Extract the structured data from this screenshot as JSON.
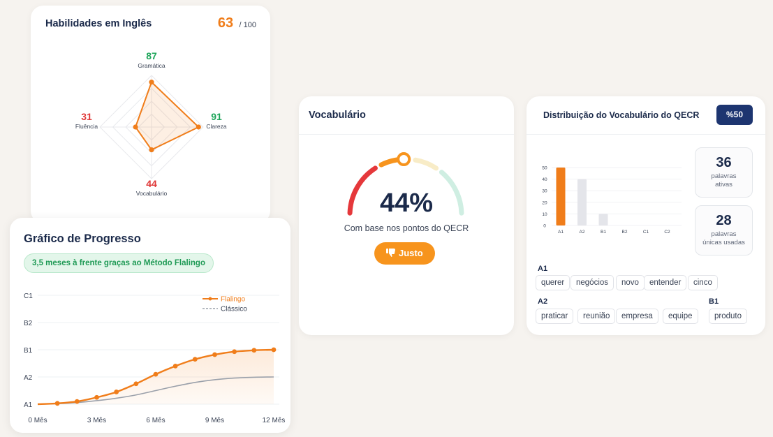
{
  "skills": {
    "title": "Habilidades em Inglês",
    "score": "63",
    "score_max": "/ 100",
    "axes": [
      {
        "label": "Gramática",
        "value": 87,
        "score_text": "87",
        "color": "#1ea55a"
      },
      {
        "label": "Clareza",
        "value": 91,
        "score_text": "91",
        "color": "#1ea55a"
      },
      {
        "label": "Vocabulário",
        "value": 44,
        "score_text": "44",
        "color": "#e03a3a"
      },
      {
        "label": "Fluência",
        "value": 31,
        "score_text": "31",
        "color": "#e03a3a"
      }
    ]
  },
  "progress": {
    "title": "Gráfico de Progresso",
    "badge": "3,5 meses à frente graças ao Método Flalingo",
    "legend": {
      "flalingo": "Flalingo",
      "classic": "Clássico"
    },
    "y_labels": [
      "C1",
      "B2",
      "B1",
      "A2",
      "A1"
    ],
    "x_labels": [
      "0 Mês",
      "3 Mês",
      "6 Mês",
      "9 Mês",
      "12 Mês"
    ]
  },
  "vocab": {
    "title": "Vocabulário",
    "percent": "44%",
    "subtitle": "Com base nos pontos do QECR",
    "button": "Justo",
    "gauge_value": 44
  },
  "dist": {
    "title": "Distribuição do Vocabulário do QECR",
    "badge": "%50",
    "stats": [
      {
        "num": "36",
        "label_line1": "palavras",
        "label_line2": "ativas"
      },
      {
        "num": "28",
        "label_line1": "palavras",
        "label_line2": "únicas usadas"
      }
    ],
    "level_a1": "A1",
    "level_a2": "A2",
    "level_b1": "B1",
    "words_a1": [
      "querer",
      "negócios",
      "novo",
      "entender",
      "cinco"
    ],
    "words_a2": [
      "praticar",
      "reunião",
      "empresa",
      "equipe"
    ],
    "words_b1": [
      "produto"
    ]
  },
  "chart_data": [
    {
      "type": "line",
      "title": "Gráfico de Progresso",
      "x": [
        0,
        1,
        2,
        3,
        4,
        5,
        6,
        7,
        8,
        9,
        10,
        11,
        12
      ],
      "x_tick_labels": [
        "0 Mês",
        "3 Mês",
        "6 Mês",
        "9 Mês",
        "12 Mês"
      ],
      "y_tick_labels": [
        "A1",
        "A2",
        "B1",
        "B2",
        "C1"
      ],
      "ylim": [
        0,
        4
      ],
      "series": [
        {
          "name": "Flalingo",
          "color": "#f07d1a",
          "values": [
            0,
            0.03,
            0.1,
            0.25,
            0.45,
            0.75,
            1.1,
            1.4,
            1.65,
            1.82,
            1.93,
            1.98,
            2.0
          ]
        },
        {
          "name": "Clássico",
          "color": "#9aa0aa",
          "values": [
            0,
            0.02,
            0.06,
            0.13,
            0.22,
            0.34,
            0.5,
            0.66,
            0.8,
            0.9,
            0.96,
            0.99,
            1.0
          ]
        }
      ],
      "legend": "top-right"
    },
    {
      "type": "bar",
      "categories": [
        "A1",
        "A2",
        "B1",
        "B2",
        "C1",
        "C2"
      ],
      "values": [
        50,
        40,
        10,
        0,
        0,
        0
      ],
      "y_ticks": [
        0,
        10,
        20,
        30,
        40,
        50
      ],
      "ylim": [
        0,
        50
      ],
      "highlight_color": "#f07d1a",
      "base_color": "#e4e5ea"
    }
  ]
}
